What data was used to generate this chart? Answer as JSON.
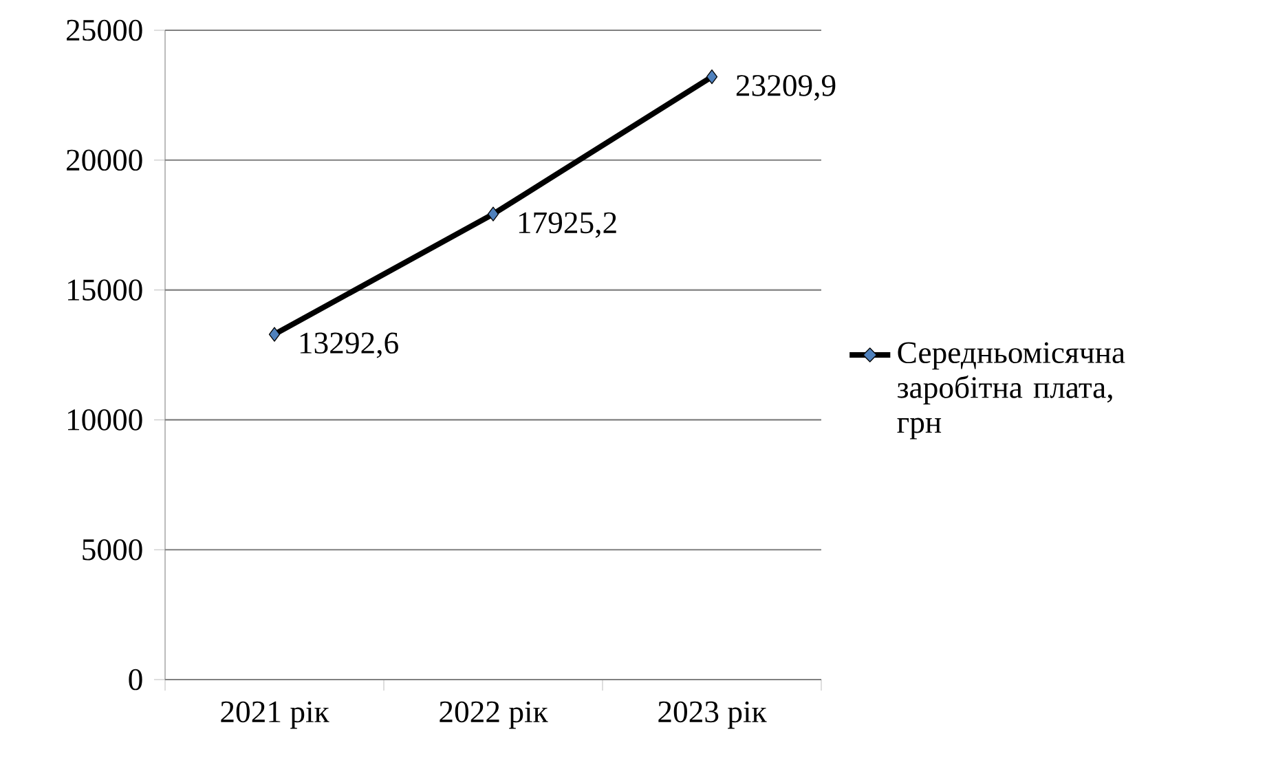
{
  "chart_data": {
    "type": "line",
    "categories": [
      "2021 рік",
      "2022 рік",
      "2023 рік"
    ],
    "series": [
      {
        "name": "Середньомісячна заробітна плата, грн",
        "color": "#000000",
        "values": [
          13292.6,
          17925.2,
          23209.9
        ],
        "value_labels": [
          "13292,6",
          "17925,2",
          "23209,9"
        ]
      }
    ],
    "ylim": [
      0,
      25000
    ],
    "yticks": [
      0,
      5000,
      10000,
      15000,
      20000,
      25000
    ],
    "grid": "y",
    "legend": "right",
    "marker": "diamond",
    "line_style": "solid"
  }
}
